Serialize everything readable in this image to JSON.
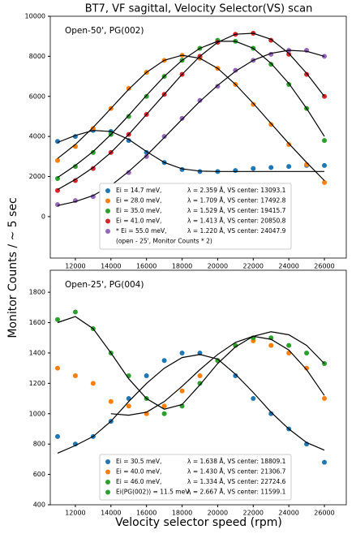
{
  "chart_data": [
    {
      "type": "scatter",
      "title": "BT7, VF sagittal, Velocity Selector(VS) scan",
      "y_label": "Monitor Counts / ~ 5 sec",
      "annotation": "Open-50', PG(002)",
      "x": [
        11000,
        12000,
        13000,
        14000,
        15000,
        16000,
        17000,
        18000,
        19000,
        20000,
        21000,
        22000,
        23000,
        24000,
        25000,
        26000
      ],
      "xlim": [
        10590,
        27230
      ],
      "ylim": [
        -2070,
        10000
      ],
      "xticks": [
        12000,
        14000,
        16000,
        18000,
        20000,
        22000,
        24000,
        26000
      ],
      "yticks": [
        0,
        2000,
        4000,
        6000,
        8000,
        10000
      ],
      "series": [
        {
          "name": "Ei = 14.7 meV,",
          "note": "λ = 2.359 Å, VS center: 13093.1",
          "color": "#1f77b4",
          "values": [
            3750,
            4000,
            4300,
            4250,
            3800,
            3200,
            2700,
            2350,
            2250,
            2250,
            2300,
            2400,
            2450,
            2500,
            2550,
            2550
          ],
          "fit": [
            3700,
            4050,
            4300,
            4250,
            3850,
            3250,
            2700,
            2380,
            2270,
            2250,
            2250,
            2250,
            2250,
            2250,
            2250,
            2250
          ]
        },
        {
          "name": "Ei = 28.0 meV,",
          "note": "λ = 1.709 Å, VS center: 17492.8",
          "color": "#ff7f0e",
          "values": [
            2800,
            3500,
            4400,
            5400,
            6400,
            7200,
            7800,
            8050,
            7900,
            7400,
            6600,
            5600,
            4600,
            3600,
            2600,
            1700
          ],
          "fit": [
            2900,
            3600,
            4450,
            5400,
            6350,
            7200,
            7800,
            8050,
            7900,
            7400,
            6600,
            5650,
            4650,
            3650,
            2700,
            1800
          ]
        },
        {
          "name": "Ei = 35.0 meV,",
          "note": "λ = 1.529 Å, VS center: 19415.7",
          "color": "#2ca02c",
          "values": [
            1900,
            2500,
            3200,
            4100,
            5000,
            6000,
            7000,
            7800,
            8400,
            8800,
            8750,
            8400,
            7600,
            6600,
            5400,
            3800
          ],
          "fit": [
            1950,
            2550,
            3250,
            4100,
            5050,
            6050,
            7000,
            7800,
            8400,
            8750,
            8750,
            8400,
            7650,
            6650,
            5400,
            4000
          ]
        },
        {
          "name": "Ei = 41.0 meV,",
          "note": "λ = 1.413 Å, VS center: 20850.8",
          "color": "#d62728",
          "values": [
            1300,
            1800,
            2400,
            3200,
            4100,
            5100,
            6100,
            7100,
            8000,
            8700,
            9100,
            9150,
            8800,
            8100,
            7100,
            6000
          ],
          "fit": [
            1350,
            1850,
            2450,
            3200,
            4100,
            5100,
            6100,
            7100,
            8000,
            8700,
            9100,
            9150,
            8850,
            8150,
            7150,
            6000
          ]
        },
        {
          "name": "* Ei = 55.0 meV,",
          "note": "λ = 1.220 Å, VS center: 24047.9",
          "note2": "(open - 25', Monitor Counts * 2)",
          "color": "#9467bd",
          "values": [
            600,
            800,
            1000,
            1500,
            2200,
            3000,
            4000,
            4900,
            5800,
            6500,
            7300,
            7800,
            8100,
            8300,
            8300,
            8000
          ],
          "fit": [
            550,
            750,
            1050,
            1550,
            2250,
            3050,
            3950,
            4850,
            5750,
            6550,
            7250,
            7800,
            8150,
            8300,
            8250,
            8000
          ]
        }
      ]
    },
    {
      "type": "scatter",
      "x_label": "Velocity selector speed (rpm)",
      "annotation": "Open-25', PG(004)",
      "x": [
        11000,
        12000,
        13000,
        14000,
        15000,
        16000,
        17000,
        18000,
        19000,
        20000,
        21000,
        22000,
        23000,
        24000,
        25000,
        26000
      ],
      "xlim": [
        10590,
        27230
      ],
      "ylim": [
        400,
        1945
      ],
      "xticks": [
        12000,
        14000,
        16000,
        18000,
        20000,
        22000,
        24000,
        26000
      ],
      "yticks": [
        400,
        600,
        800,
        1000,
        1200,
        1400,
        1600,
        1800
      ],
      "series": [
        {
          "name": "Ei = 30.5 meV,",
          "note": "λ = 1.638 Å, VS center: 18809.1",
          "color": "#1f77b4",
          "values": [
            850,
            800,
            850,
            950,
            1100,
            1250,
            1350,
            1400,
            1400,
            1350,
            1250,
            1100,
            1000,
            900,
            800,
            680
          ],
          "fit": [
            740,
            790,
            850,
            950,
            1080,
            1200,
            1300,
            1370,
            1390,
            1360,
            1260,
            1140,
            1010,
            900,
            810,
            760
          ]
        },
        {
          "name": "Ei = 40.0 meV,",
          "note": "λ = 1.430 Å, VS center: 21306.7",
          "color": "#ff7f0e",
          "values": [
            1300,
            1250,
            1200,
            1080,
            1050,
            1000,
            1050,
            1150,
            1250,
            1350,
            1450,
            1480,
            1450,
            1400,
            1300,
            1100
          ],
          "fit": [
            null,
            null,
            null,
            1000,
            990,
            1010,
            1080,
            1180,
            1290,
            1390,
            1470,
            1510,
            1490,
            1420,
            1290,
            1120
          ]
        },
        {
          "name": "Ei = 46.0 meV,",
          "note": "λ = 1.334 Å, VS center: 22724.6",
          "color": "#2ca02c",
          "values": [
            1620,
            1670,
            1560,
            1400,
            1250,
            1100,
            1000,
            1050,
            1200,
            1350,
            1450,
            1500,
            1500,
            1450,
            1400,
            1330
          ],
          "fit": [
            1600,
            1640,
            1560,
            1400,
            1230,
            1100,
            1030,
            1060,
            1190,
            1330,
            1440,
            1510,
            1540,
            1520,
            1450,
            1330
          ]
        }
      ],
      "legend_extra": {
        "name": "Ei(PG(002)) = 11.5 meV,",
        "note": "λ = 2.667 Å, VS center: 11599.1",
        "color": "#2ca02c"
      }
    }
  ]
}
